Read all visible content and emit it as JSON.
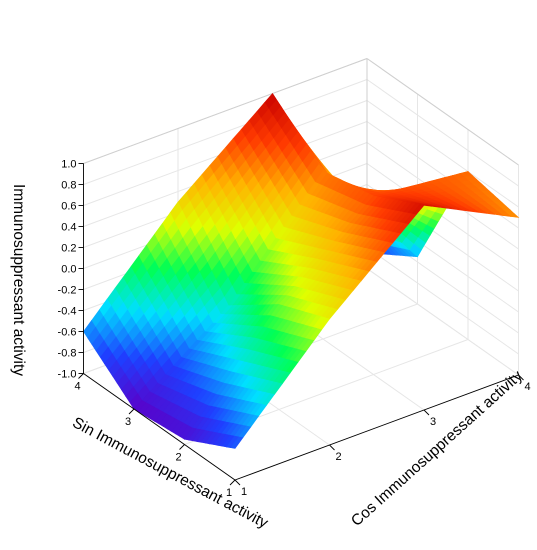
{
  "chart_data": {
    "type": "surface",
    "title": "",
    "xlabel": "Sin Immunosuppressant activity",
    "ylabel": "Cos Immunosuppressant activity",
    "zlabel": "Immunosuppressant activity",
    "x": [
      1,
      2,
      3,
      4
    ],
    "y": [
      1,
      2,
      3,
      4
    ],
    "xlim": [
      1,
      4
    ],
    "ylim": [
      1,
      4
    ],
    "zlim": [
      -1.0,
      1.0
    ],
    "x_ticks": [
      "1",
      "2",
      "3",
      "4"
    ],
    "y_ticks": [
      "1",
      "2",
      "3",
      "4"
    ],
    "z_ticks": [
      "-1.0",
      "-0.8",
      "-0.6",
      "-0.4",
      "-0.2",
      "0.0",
      "0.2",
      "0.4",
      "0.6",
      "0.8",
      "1.0"
    ],
    "z_values": [
      [
        -0.7,
        0.2,
        0.95,
        0.5
      ],
      [
        -0.95,
        0.0,
        0.7,
        0.6
      ],
      [
        -1.0,
        -0.35,
        0.6,
        -0.55
      ],
      [
        -0.6,
        0.3,
        1.0,
        -0.85
      ]
    ],
    "colormap": [
      "#5a00c8",
      "#1f3fff",
      "#00e0ff",
      "#00ff55",
      "#dfff00",
      "#ffb300",
      "#ff3a00",
      "#c80000"
    ],
    "grid": true,
    "legend": "none"
  }
}
